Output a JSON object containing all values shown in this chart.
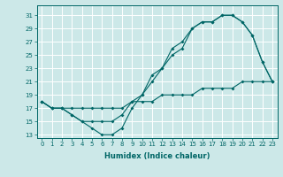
{
  "xlabel": "Humidex (Indice chaleur)",
  "bg_color": "#cce8e8",
  "grid_color": "#ffffff",
  "line_color": "#006666",
  "xlim": [
    -0.5,
    23.5
  ],
  "ylim": [
    12.5,
    32.5
  ],
  "yticks": [
    13,
    15,
    17,
    19,
    21,
    23,
    25,
    27,
    29,
    31
  ],
  "xticks": [
    0,
    1,
    2,
    3,
    4,
    5,
    6,
    7,
    8,
    9,
    10,
    11,
    12,
    13,
    14,
    15,
    16,
    17,
    18,
    19,
    20,
    21,
    22,
    23
  ],
  "line1_x": [
    0,
    1,
    2,
    3,
    4,
    5,
    6,
    7,
    8,
    9,
    10,
    11,
    12,
    13,
    14,
    15,
    16,
    17,
    18,
    19,
    20,
    21,
    22,
    23
  ],
  "line1_y": [
    18,
    17,
    17,
    16,
    15,
    14,
    13,
    13,
    14,
    17,
    19,
    21,
    23,
    25,
    26,
    29,
    30,
    30,
    31,
    31,
    30,
    28,
    24,
    21
  ],
  "line2_x": [
    0,
    1,
    2,
    3,
    4,
    5,
    6,
    7,
    8,
    9,
    10,
    11,
    12,
    13,
    14,
    15,
    16,
    17,
    18,
    19,
    20,
    21,
    22,
    23
  ],
  "line2_y": [
    18,
    17,
    17,
    16,
    15,
    15,
    15,
    15,
    16,
    18,
    19,
    22,
    23,
    26,
    27,
    29,
    30,
    30,
    31,
    31,
    30,
    28,
    24,
    21
  ],
  "line3_x": [
    0,
    1,
    2,
    3,
    4,
    5,
    6,
    7,
    8,
    9,
    10,
    11,
    12,
    13,
    14,
    15,
    16,
    17,
    18,
    19,
    20,
    21,
    22,
    23
  ],
  "line3_y": [
    18,
    17,
    17,
    17,
    17,
    17,
    17,
    17,
    17,
    18,
    18,
    18,
    19,
    19,
    19,
    19,
    20,
    20,
    20,
    20,
    21,
    21,
    21,
    21
  ],
  "tick_fontsize": 5.0,
  "xlabel_fontsize": 6.0
}
